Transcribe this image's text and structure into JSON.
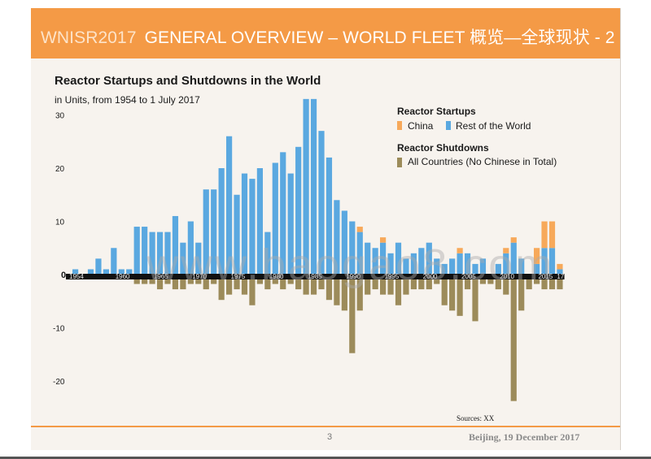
{
  "header": {
    "prefix": "WNISR2017",
    "title": "GENERAL OVERVIEW – WORLD FLEET 概览—全球现状 - 2"
  },
  "footer": {
    "page_number": "3",
    "date": "Beijing, 19 December 2017",
    "source": "Sources: XX"
  },
  "watermark": "www.baogao8.com",
  "colors": {
    "china": "#f7a95a",
    "rest_of_world": "#5aa8e0",
    "shutdowns": "#9c8b5a",
    "banner": "#f49a46"
  },
  "chart_data": {
    "type": "bar",
    "title": "Reactor Startups and Shutdowns in the World",
    "subtitle": "in Units, from 1954 to 1 July 2017",
    "xlabel": "",
    "ylabel": "",
    "ylim": [
      -25,
      33
    ],
    "yticks": [
      30,
      20,
      10,
      0,
      -10,
      -20
    ],
    "grid": false,
    "legend_position": "top-right",
    "legend": {
      "startups_heading": "Reactor Startups",
      "china_label": "China",
      "rest_label": "Rest of the World",
      "shutdowns_heading": "Reactor Shutdowns",
      "shutdowns_label": "All Countries (No Chinese in Total)"
    },
    "x_tick_labels": [
      {
        "year": 1954,
        "label": "1954"
      },
      {
        "year": 1960,
        "label": "1960"
      },
      {
        "year": 1965,
        "label": "1965"
      },
      {
        "year": 1970,
        "label": "1970"
      },
      {
        "year": 1975,
        "label": "1975"
      },
      {
        "year": 1980,
        "label": "1980"
      },
      {
        "year": 1985,
        "label": "1985"
      },
      {
        "year": 1990,
        "label": "1990"
      },
      {
        "year": 1995,
        "label": "1995"
      },
      {
        "year": 2000,
        "label": "2000"
      },
      {
        "year": 2005,
        "label": "2005"
      },
      {
        "year": 2010,
        "label": "2010"
      },
      {
        "year": 2015,
        "label": "2015"
      },
      {
        "year": 2017,
        "label": "17"
      }
    ],
    "years": [
      1954,
      1955,
      1956,
      1957,
      1958,
      1959,
      1960,
      1961,
      1962,
      1963,
      1964,
      1965,
      1966,
      1967,
      1968,
      1969,
      1970,
      1971,
      1972,
      1973,
      1974,
      1975,
      1976,
      1977,
      1978,
      1979,
      1980,
      1981,
      1982,
      1983,
      1984,
      1985,
      1986,
      1987,
      1988,
      1989,
      1990,
      1991,
      1992,
      1993,
      1994,
      1995,
      1996,
      1997,
      1998,
      1999,
      2000,
      2001,
      2002,
      2003,
      2004,
      2005,
      2006,
      2007,
      2008,
      2009,
      2010,
      2011,
      2012,
      2013,
      2014,
      2015,
      2016,
      2017
    ],
    "series": [
      {
        "name": "China",
        "values": [
          0,
          0,
          0,
          0,
          0,
          0,
          0,
          0,
          0,
          0,
          0,
          0,
          0,
          0,
          0,
          0,
          0,
          0,
          0,
          0,
          0,
          0,
          0,
          0,
          0,
          0,
          0,
          0,
          0,
          0,
          0,
          0,
          0,
          0,
          0,
          0,
          0,
          1,
          0,
          0,
          1,
          0,
          0,
          0,
          0,
          0,
          0,
          0,
          0,
          0,
          1,
          0,
          0,
          0,
          0,
          0,
          1,
          1,
          0,
          0,
          3,
          5,
          5,
          1
        ]
      },
      {
        "name": "Rest of the World",
        "values": [
          1,
          0,
          1,
          3,
          1,
          5,
          1,
          1,
          9,
          9,
          8,
          8,
          8,
          11,
          6,
          10,
          6,
          16,
          16,
          20,
          26,
          15,
          19,
          18,
          20,
          8,
          21,
          23,
          19,
          24,
          33,
          33,
          27,
          22,
          14,
          12,
          10,
          8,
          6,
          5,
          6,
          4,
          6,
          3,
          4,
          5,
          6,
          3,
          2,
          3,
          4,
          4,
          2,
          3,
          0,
          2,
          4,
          6,
          3,
          0,
          2,
          5,
          5,
          1
        ]
      },
      {
        "name": "All Countries (No Chinese in Total)",
        "values": [
          0,
          0,
          0,
          0,
          0,
          0,
          0,
          0,
          -1,
          -1,
          -1,
          -2,
          -1,
          -2,
          -2,
          -1,
          -1,
          -2,
          -1,
          -4,
          -3,
          -2,
          -3,
          -5,
          -1,
          -2,
          -1,
          -2,
          -1,
          -2,
          -3,
          -3,
          -2,
          -4,
          -5,
          -6,
          -14,
          -6,
          -3,
          -2,
          -3,
          -3,
          -5,
          -3,
          -2,
          -2,
          -2,
          -1,
          -5,
          -6,
          -7,
          -2,
          -8,
          -1,
          -1,
          -2,
          -3,
          -23,
          -6,
          -2,
          -1,
          -2,
          -2,
          -2
        ]
      }
    ]
  }
}
